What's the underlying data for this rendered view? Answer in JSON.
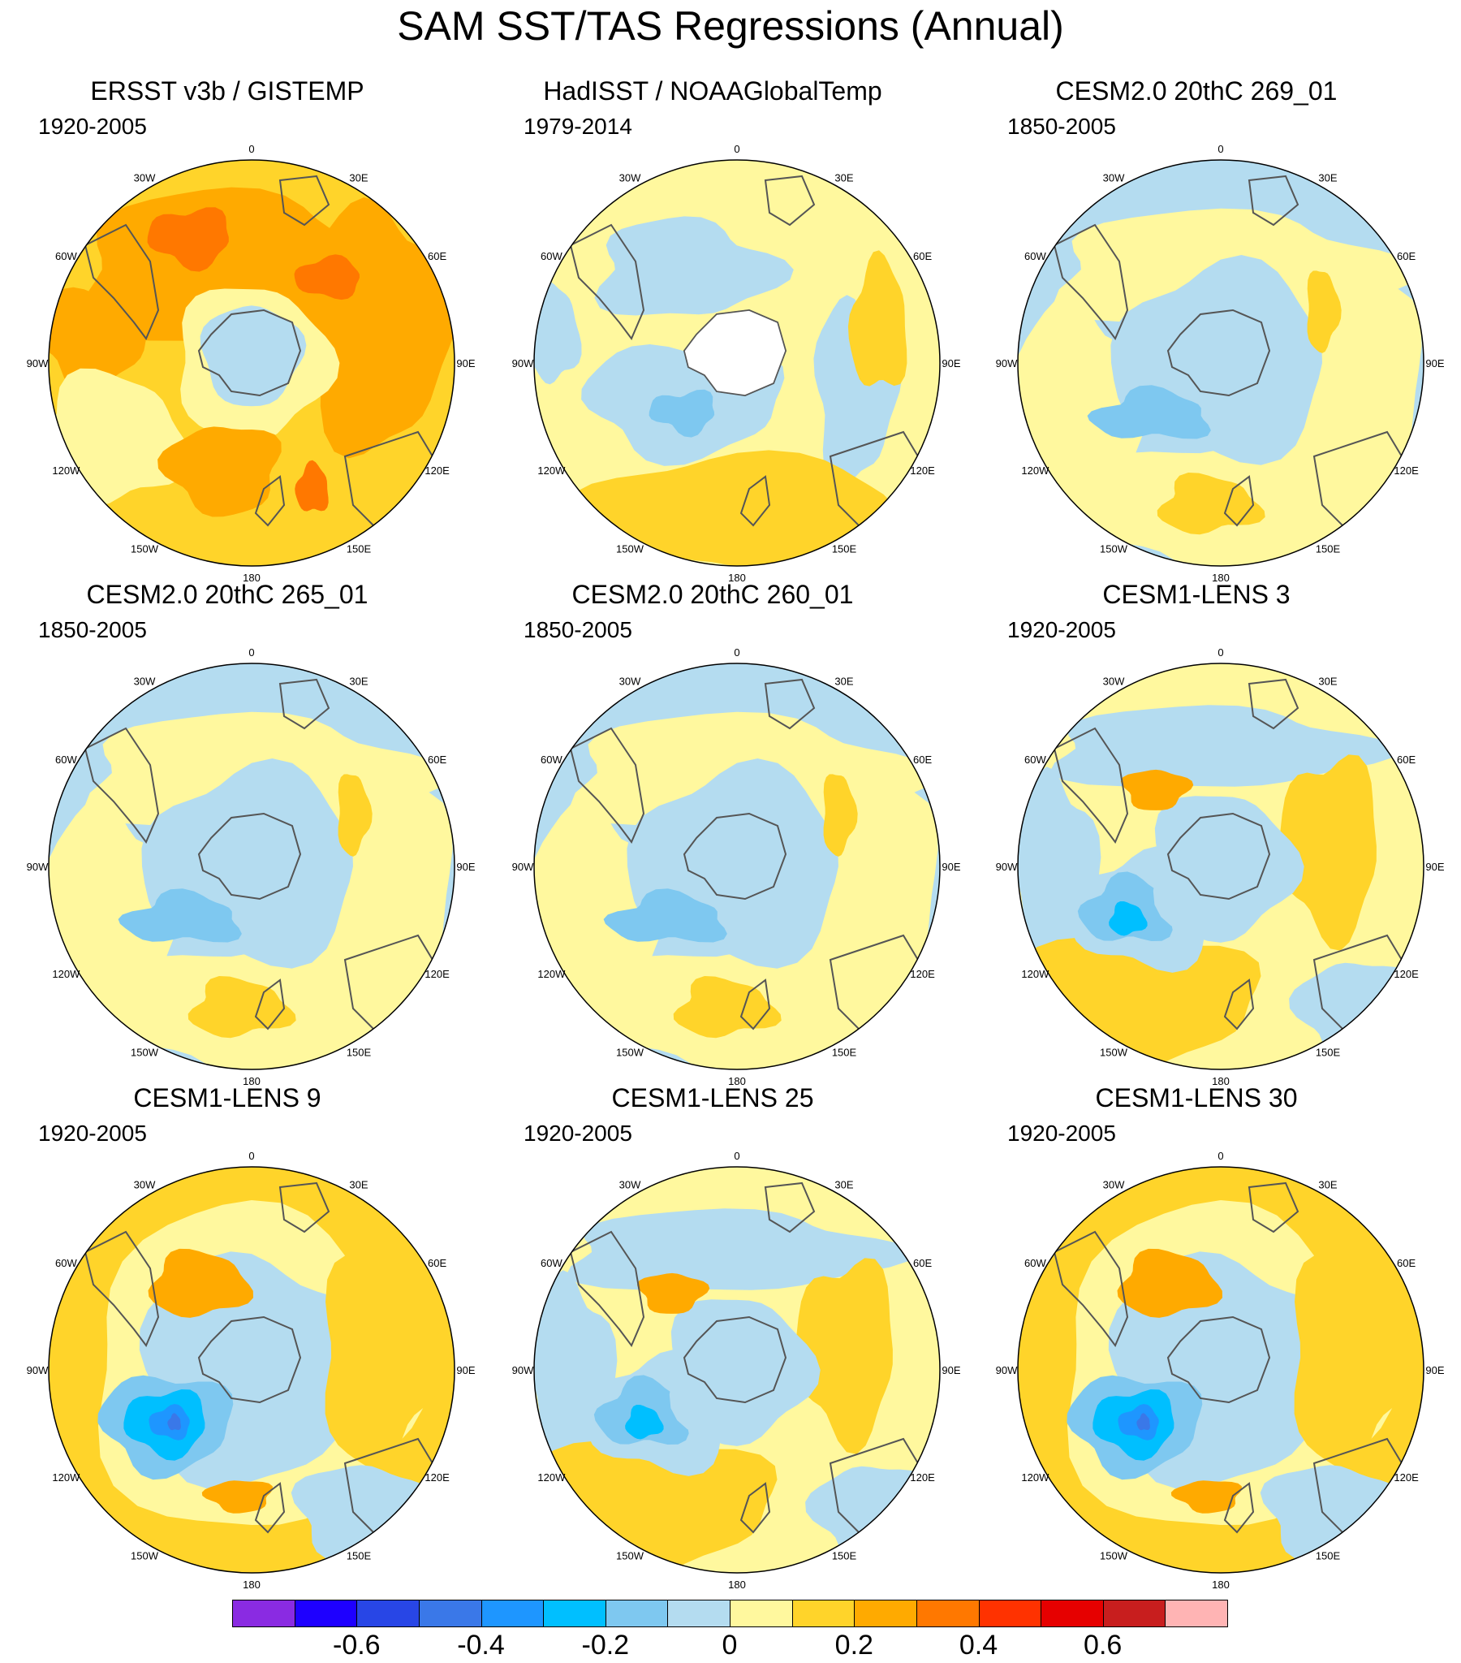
{
  "title": "SAM SST/TAS Regressions (Annual)",
  "lon_labels": [
    "0",
    "30E",
    "60E",
    "90E",
    "120E",
    "150E",
    "180",
    "150W",
    "120W",
    "90W",
    "60W",
    "30W"
  ],
  "panels": [
    {
      "title": "ERSST v3b / GISTEMP",
      "period": "1920-2005",
      "pattern": "warm",
      "missing_ocean": true
    },
    {
      "title": "HadISST / NOAAGlobalTemp",
      "period": "1979-2014",
      "pattern": "obs",
      "missing_antarctica": true
    },
    {
      "title": "CESM2.0 20thC 269_01",
      "period": "1850-2005",
      "pattern": "weak"
    },
    {
      "title": "CESM2.0 20thC 265_01",
      "period": "1850-2005",
      "pattern": "weak"
    },
    {
      "title": "CESM2.0 20thC 260_01",
      "period": "1850-2005",
      "pattern": "weak"
    },
    {
      "title": "CESM1-LENS 3",
      "period": "1920-2005",
      "pattern": "mid"
    },
    {
      "title": "CESM1-LENS 9",
      "period": "1920-2005",
      "pattern": "strong"
    },
    {
      "title": "CESM1-LENS 25",
      "period": "1920-2005",
      "pattern": "mid"
    },
    {
      "title": "CESM1-LENS 30",
      "period": "1920-2005",
      "pattern": "strong"
    }
  ],
  "colorbar": {
    "colors": [
      "#8a2be2",
      "#1e00ff",
      "#2846e6",
      "#3a78e8",
      "#1e96ff",
      "#00bfff",
      "#7ec8f0",
      "#b4dcf0",
      "#fff89e",
      "#ffd42a",
      "#ffaa00",
      "#ff7800",
      "#ff3200",
      "#e60000",
      "#c81e1e",
      "#ffb4b4"
    ],
    "tick_labels": [
      "-0.6",
      "-0.4",
      "-0.2",
      "0",
      "0.2",
      "0.4",
      "0.6"
    ],
    "tick_values": [
      -0.6,
      -0.4,
      -0.2,
      0,
      0.2,
      0.4,
      0.6
    ],
    "range": [
      -0.8,
      0.8
    ]
  }
}
